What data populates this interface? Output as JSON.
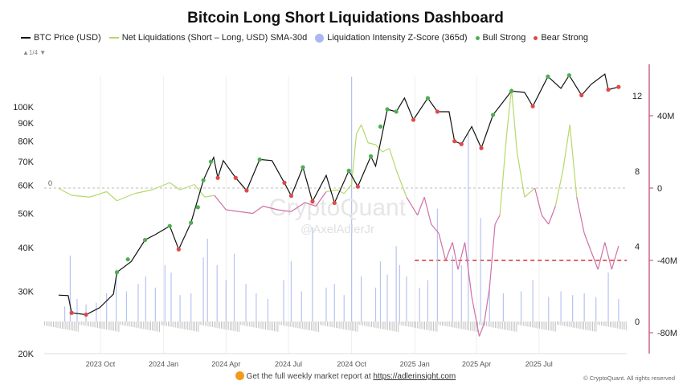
{
  "title": "Bitcoin Long Short Liquidations Dashboard",
  "legend": [
    {
      "label": "BTC Price (USD)",
      "color": "#111111",
      "kind": "line"
    },
    {
      "label": "Net Liquidations (Short – Long, USD) SMA-30d",
      "color": "#b5d96b",
      "kind": "line"
    },
    {
      "label": "Liquidation Intensity Z-Score (365d)",
      "color": "#aab8f0",
      "kind": "dot"
    },
    {
      "label": "Bull Strong",
      "color": "#4caf50",
      "kind": "dot"
    },
    {
      "label": "Bear Strong",
      "color": "#e04848",
      "kind": "dot"
    }
  ],
  "pager": "▲1/4 ▼",
  "watermark": {
    "brand": "CryptoQuant",
    "handle": "@AxelAdlerJr"
  },
  "footer": {
    "text": "Get the full weekly market report at ",
    "link": "https://adlerinsight.com",
    "copyright": "© CryptoQuant. All rights reserved"
  },
  "colors": {
    "net_liq_positive": "#b5d96b",
    "net_liq_negative": "#d070a8",
    "zscore": "#aab8f0",
    "threshold": "#d9322e",
    "right_axis_line": "#c04070"
  },
  "chart_data": {
    "type": "line",
    "x_ticks": [
      "2023 Oct",
      "2024 Jan",
      "2024 Apr",
      "2024 Jul",
      "2024 Oct",
      "2025 Jan",
      "2025 Apr",
      "2025 Jul"
    ],
    "x_tick_dates": [
      "2023-10-01",
      "2024-01-01",
      "2024-04-01",
      "2024-07-01",
      "2024-10-01",
      "2025-01-01",
      "2025-04-01",
      "2025-07-01"
    ],
    "y_left": {
      "scale": "log",
      "ticks": [
        "20K",
        "30K",
        "40K",
        "50K",
        "60K",
        "70K",
        "80K",
        "90K",
        "100K"
      ],
      "tick_values": [
        20000,
        30000,
        40000,
        50000,
        60000,
        70000,
        80000,
        90000,
        100000
      ]
    },
    "y_right_zscore": {
      "ticks": [
        "0",
        "4",
        "8",
        "12"
      ],
      "tick_values": [
        0,
        4,
        8,
        12
      ]
    },
    "y_right_netliq": {
      "ticks": [
        "-80M",
        "-40M",
        "0",
        "40M"
      ],
      "tick_values": [
        -80,
        -40,
        0,
        40
      ]
    },
    "zero_label": "0",
    "threshold_netliq_m": -40,
    "threshold_start": "2025-01-01",
    "btc_price": [
      [
        "2023-08-01",
        29300
      ],
      [
        "2023-08-15",
        29200
      ],
      [
        "2023-08-20",
        26100
      ],
      [
        "2023-09-10",
        25800
      ],
      [
        "2023-09-30",
        27000
      ],
      [
        "2023-10-20",
        29500
      ],
      [
        "2023-10-25",
        34000
      ],
      [
        "2023-11-15",
        36500
      ],
      [
        "2023-12-05",
        42000
      ],
      [
        "2023-12-20",
        43500
      ],
      [
        "2024-01-10",
        46000
      ],
      [
        "2024-01-23",
        39500
      ],
      [
        "2024-02-10",
        47000
      ],
      [
        "2024-02-28",
        62000
      ],
      [
        "2024-03-14",
        72000
      ],
      [
        "2024-03-20",
        63000
      ],
      [
        "2024-03-28",
        70500
      ],
      [
        "2024-04-15",
        63000
      ],
      [
        "2024-05-01",
        58000
      ],
      [
        "2024-05-20",
        71000
      ],
      [
        "2024-06-07",
        70500
      ],
      [
        "2024-06-25",
        61000
      ],
      [
        "2024-07-05",
        56000
      ],
      [
        "2024-07-22",
        67500
      ],
      [
        "2024-08-05",
        54000
      ],
      [
        "2024-08-25",
        64000
      ],
      [
        "2024-09-06",
        53500
      ],
      [
        "2024-09-27",
        66000
      ],
      [
        "2024-10-10",
        59500
      ],
      [
        "2024-10-29",
        72500
      ],
      [
        "2024-11-05",
        68000
      ],
      [
        "2024-11-22",
        98500
      ],
      [
        "2024-12-05",
        97000
      ],
      [
        "2024-12-17",
        106000
      ],
      [
        "2024-12-30",
        92000
      ],
      [
        "2025-01-20",
        106000
      ],
      [
        "2025-02-03",
        97000
      ],
      [
        "2025-02-20",
        97000
      ],
      [
        "2025-02-28",
        80000
      ],
      [
        "2025-03-10",
        78500
      ],
      [
        "2025-03-25",
        88000
      ],
      [
        "2025-04-08",
        76500
      ],
      [
        "2025-04-25",
        95000
      ],
      [
        "2025-05-22",
        111000
      ],
      [
        "2025-06-10",
        110000
      ],
      [
        "2025-06-22",
        100500
      ],
      [
        "2025-07-14",
        122000
      ],
      [
        "2025-08-02",
        113000
      ],
      [
        "2025-08-14",
        123000
      ],
      [
        "2025-09-01",
        108000
      ],
      [
        "2025-09-15",
        116000
      ],
      [
        "2025-10-05",
        124000
      ],
      [
        "2025-10-10",
        112000
      ],
      [
        "2025-10-25",
        114000
      ]
    ],
    "net_liquidations_m": [
      [
        "2023-08-01",
        0
      ],
      [
        "2023-08-05",
        -1
      ],
      [
        "2023-08-20",
        -4
      ],
      [
        "2023-09-15",
        -5
      ],
      [
        "2023-10-10",
        -2
      ],
      [
        "2023-10-25",
        -7
      ],
      [
        "2023-11-20",
        -3
      ],
      [
        "2023-12-15",
        -1
      ],
      [
        "2024-01-10",
        3
      ],
      [
        "2024-01-25",
        -1
      ],
      [
        "2024-02-15",
        2
      ],
      [
        "2024-03-01",
        -5
      ],
      [
        "2024-03-15",
        -4
      ],
      [
        "2024-04-01",
        -12
      ],
      [
        "2024-04-20",
        -13
      ],
      [
        "2024-05-10",
        -14
      ],
      [
        "2024-05-25",
        -10
      ],
      [
        "2024-06-15",
        -12
      ],
      [
        "2024-07-05",
        -13
      ],
      [
        "2024-07-25",
        -8
      ],
      [
        "2024-08-10",
        -10
      ],
      [
        "2024-08-25",
        -2
      ],
      [
        "2024-09-10",
        -1
      ],
      [
        "2024-09-20",
        -3
      ],
      [
        "2024-10-01",
        2
      ],
      [
        "2024-10-08",
        30
      ],
      [
        "2024-10-15",
        35
      ],
      [
        "2024-10-25",
        25
      ],
      [
        "2024-11-05",
        24
      ],
      [
        "2024-11-15",
        20
      ],
      [
        "2024-11-25",
        22
      ],
      [
        "2024-12-05",
        10
      ],
      [
        "2024-12-20",
        -5
      ],
      [
        "2025-01-05",
        -15
      ],
      [
        "2025-01-15",
        -5
      ],
      [
        "2025-01-25",
        -20
      ],
      [
        "2025-02-05",
        -25
      ],
      [
        "2025-02-15",
        -40
      ],
      [
        "2025-02-25",
        -30
      ],
      [
        "2025-03-05",
        -45
      ],
      [
        "2025-03-15",
        -30
      ],
      [
        "2025-03-25",
        -60
      ],
      [
        "2025-04-05",
        -82
      ],
      [
        "2025-04-12",
        -75
      ],
      [
        "2025-04-20",
        -55
      ],
      [
        "2025-04-28",
        -20
      ],
      [
        "2025-05-05",
        -15
      ],
      [
        "2025-05-15",
        30
      ],
      [
        "2025-05-22",
        55
      ],
      [
        "2025-05-30",
        20
      ],
      [
        "2025-06-10",
        -5
      ],
      [
        "2025-06-25",
        0
      ],
      [
        "2025-07-05",
        -15
      ],
      [
        "2025-07-15",
        -20
      ],
      [
        "2025-07-25",
        -10
      ],
      [
        "2025-08-05",
        10
      ],
      [
        "2025-08-15",
        35
      ],
      [
        "2025-08-25",
        -5
      ],
      [
        "2025-09-05",
        -25
      ],
      [
        "2025-09-15",
        -35
      ],
      [
        "2025-09-25",
        -45
      ],
      [
        "2025-10-05",
        -30
      ],
      [
        "2025-10-15",
        -45
      ],
      [
        "2025-10-25",
        -32
      ]
    ],
    "zscore": [
      [
        "2023-08-10",
        0.8
      ],
      [
        "2023-08-18",
        3.5
      ],
      [
        "2023-08-28",
        1.2
      ],
      [
        "2023-09-10",
        0.9
      ],
      [
        "2023-09-25",
        1.0
      ],
      [
        "2023-10-10",
        1.5
      ],
      [
        "2023-10-24",
        2.8
      ],
      [
        "2023-11-08",
        1.6
      ],
      [
        "2023-11-25",
        2.0
      ],
      [
        "2023-12-06",
        2.4
      ],
      [
        "2023-12-20",
        1.8
      ],
      [
        "2024-01-03",
        3.0
      ],
      [
        "2024-01-12",
        2.6
      ],
      [
        "2024-01-25",
        1.4
      ],
      [
        "2024-02-10",
        1.5
      ],
      [
        "2024-02-28",
        3.4
      ],
      [
        "2024-03-05",
        4.4
      ],
      [
        "2024-03-19",
        3.0
      ],
      [
        "2024-04-01",
        2.2
      ],
      [
        "2024-04-13",
        3.6
      ],
      [
        "2024-04-30",
        2.0
      ],
      [
        "2024-05-15",
        1.5
      ],
      [
        "2024-06-01",
        1.2
      ],
      [
        "2024-06-24",
        2.2
      ],
      [
        "2024-07-05",
        3.2
      ],
      [
        "2024-07-20",
        1.6
      ],
      [
        "2024-08-05",
        5.0
      ],
      [
        "2024-08-25",
        1.8
      ],
      [
        "2024-09-06",
        2.0
      ],
      [
        "2024-09-20",
        1.4
      ],
      [
        "2024-10-01",
        13.0
      ],
      [
        "2024-10-15",
        2.4
      ],
      [
        "2024-11-05",
        1.8
      ],
      [
        "2024-11-12",
        3.2
      ],
      [
        "2024-11-22",
        2.5
      ],
      [
        "2024-12-05",
        4.0
      ],
      [
        "2024-12-10",
        3.0
      ],
      [
        "2024-12-20",
        2.4
      ],
      [
        "2025-01-08",
        1.8
      ],
      [
        "2025-01-20",
        2.2
      ],
      [
        "2025-02-03",
        6.0
      ],
      [
        "2025-02-25",
        3.5
      ],
      [
        "2025-03-10",
        3.0
      ],
      [
        "2025-03-20",
        10.0
      ],
      [
        "2025-04-07",
        5.5
      ],
      [
        "2025-04-20",
        2.0
      ],
      [
        "2025-05-10",
        1.5
      ],
      [
        "2025-06-05",
        1.6
      ],
      [
        "2025-06-22",
        2.2
      ],
      [
        "2025-07-15",
        1.3
      ],
      [
        "2025-08-02",
        1.6
      ],
      [
        "2025-08-19",
        1.4
      ],
      [
        "2025-09-05",
        1.5
      ],
      [
        "2025-09-22",
        1.3
      ],
      [
        "2025-10-10",
        2.6
      ],
      [
        "2025-10-25",
        1.2
      ]
    ],
    "bull_strong": [
      [
        "2023-10-25",
        34000
      ],
      [
        "2023-11-10",
        37000
      ],
      [
        "2023-12-05",
        42000
      ],
      [
        "2024-01-10",
        46000
      ],
      [
        "2024-02-10",
        47000
      ],
      [
        "2024-02-20",
        52000
      ],
      [
        "2024-02-28",
        62000
      ],
      [
        "2024-03-10",
        70000
      ],
      [
        "2024-05-20",
        71000
      ],
      [
        "2024-07-22",
        67500
      ],
      [
        "2024-09-27",
        66000
      ],
      [
        "2024-10-29",
        72500
      ],
      [
        "2024-11-12",
        88000
      ],
      [
        "2024-11-22",
        98500
      ],
      [
        "2024-12-05",
        97000
      ],
      [
        "2025-01-20",
        106000
      ],
      [
        "2025-04-25",
        95000
      ],
      [
        "2025-05-22",
        111000
      ],
      [
        "2025-07-14",
        122000
      ],
      [
        "2025-08-14",
        123000
      ]
    ],
    "bear_strong": [
      [
        "2023-08-20",
        26100
      ],
      [
        "2023-09-10",
        25800
      ],
      [
        "2024-01-23",
        39500
      ],
      [
        "2024-03-20",
        63000
      ],
      [
        "2024-04-15",
        63000
      ],
      [
        "2024-05-01",
        58000
      ],
      [
        "2024-06-25",
        61000
      ],
      [
        "2024-07-05",
        56000
      ],
      [
        "2024-08-05",
        54000
      ],
      [
        "2024-09-06",
        53500
      ],
      [
        "2024-10-10",
        59500
      ],
      [
        "2024-12-30",
        92000
      ],
      [
        "2025-02-03",
        97000
      ],
      [
        "2025-02-28",
        80000
      ],
      [
        "2025-03-10",
        78500
      ],
      [
        "2025-04-08",
        76500
      ],
      [
        "2025-06-22",
        100500
      ],
      [
        "2025-09-01",
        108000
      ],
      [
        "2025-10-10",
        112000
      ],
      [
        "2025-10-25",
        114000
      ]
    ]
  }
}
